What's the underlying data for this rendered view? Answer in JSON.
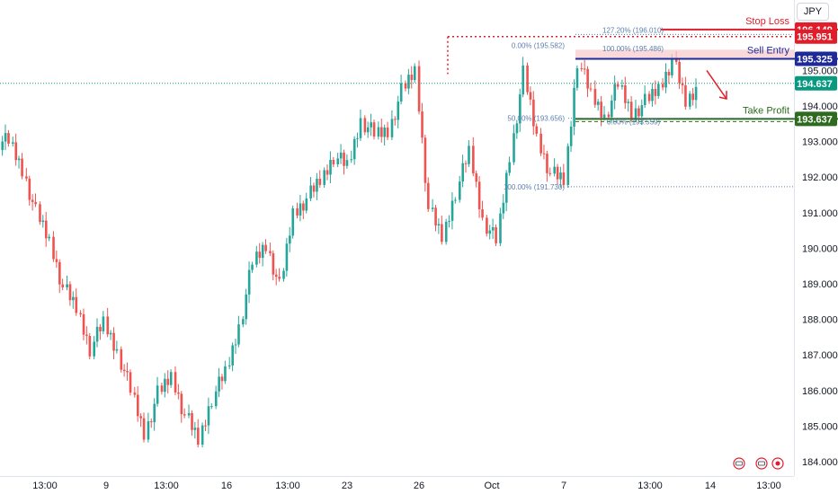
{
  "currency": "JPY",
  "price_axis": {
    "ticks": [
      "195.000",
      "194.000",
      "193.000",
      "192.000",
      "191.000",
      "190.000",
      "189.000",
      "188.000",
      "187.000",
      "186.000",
      "185.000",
      "184.000"
    ],
    "tag_current": "194.637",
    "tag_entry": "195.325",
    "tag_stop": "195.951",
    "tag_stop_partial": "196.149",
    "tag_tp": "193.637"
  },
  "time_axis": {
    "ticks": [
      "13:00",
      "9",
      "13:00",
      "16",
      "13:00",
      "23",
      "26",
      "Oct",
      "7",
      "13:00",
      "14",
      "13:00"
    ]
  },
  "annotations": {
    "stop_loss": "Stop Loss",
    "sell_entry": "Sell Entry",
    "take_profit": "Take Profit"
  },
  "fib_labels": {
    "f1272": "127.20% (196.010)",
    "f0_left": "0.00% (195.582)",
    "f100_right": "100.00% (195.486)",
    "f50": "50.00% (193.656)",
    "f0_right": "0.00% (193.559)",
    "f100_left": "100.00% (191.730)"
  },
  "colors": {
    "up": "#26a69a",
    "down": "#ef5350",
    "stop": "#e01e2b",
    "entry": "#1e2a9a",
    "tp": "#2e6b1e",
    "current": "#089981",
    "fib": "#5b7fae"
  },
  "icons": [
    "settings-icon",
    "compare-icon",
    "record-icon"
  ],
  "chart_data": {
    "type": "candlestick",
    "symbol_currency": "JPY",
    "ylim": [
      183.8,
      196.4
    ],
    "levels": {
      "stop_loss": 195.951,
      "sell_entry": 195.325,
      "take_profit": 193.637,
      "current_price": 194.637
    },
    "fibonacci": [
      {
        "label": "127.20%",
        "value": 196.01
      },
      {
        "label": "0.00%",
        "value": 195.582
      },
      {
        "label": "100.00%",
        "value": 195.486
      },
      {
        "label": "50.00%",
        "value": 193.656
      },
      {
        "label": "0.00%",
        "value": 193.559
      },
      {
        "label": "100.00%",
        "value": 191.73
      }
    ],
    "x_tick_labels": [
      "13:00",
      "9",
      "13:00",
      "16",
      "13:00",
      "23",
      "26",
      "Oct",
      "7",
      "13:00",
      "14",
      "13:00"
    ],
    "close_path": [
      193.0,
      192.2,
      191.0,
      190.2,
      188.9,
      188.3,
      187.2,
      187.9,
      187.1,
      186.0,
      184.8,
      185.9,
      186.4,
      185.3,
      184.6,
      185.8,
      186.5,
      187.8,
      189.6,
      190.1,
      188.9,
      191.0,
      191.4,
      191.9,
      192.6,
      192.3,
      193.6,
      193.2,
      193.3,
      194.4,
      195.0,
      191.1,
      190.3,
      191.6,
      192.7,
      190.8,
      190.2,
      192.6,
      194.9,
      193.1,
      192.1,
      191.9,
      195.3,
      194.3,
      193.7,
      194.6,
      193.8,
      194.1,
      194.5,
      195.3,
      194.1,
      194.6
    ]
  }
}
